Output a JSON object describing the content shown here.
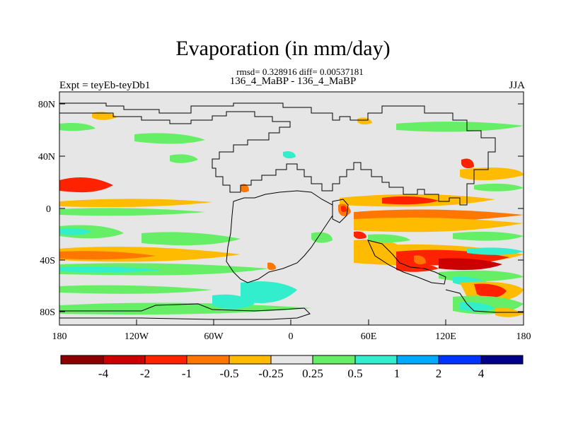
{
  "title": "Evaporation (in mm/day)",
  "stats_line": "rmsd= 0.328916 diff= 0.00537181",
  "period_line": "136_4_MaBP - 136_4_MaBP",
  "experiment_label": "Expt = teyEb-teyDb1",
  "season_label": "JJA",
  "axes": {
    "y_tick_labels": [
      "80N",
      "40N",
      "0",
      "40S",
      "80S"
    ],
    "x_tick_labels": [
      "180",
      "120W",
      "60W",
      "0",
      "60E",
      "120E",
      "180"
    ]
  },
  "colorbar": {
    "labels": [
      "-4",
      "-2",
      "-1",
      "-0.5",
      "-0.25",
      "0.25",
      "0.5",
      "1",
      "2",
      "4"
    ],
    "colors": [
      "#8b0000",
      "#cc0000",
      "#ff2200",
      "#ff7700",
      "#ffbb00",
      "#e6e6e6",
      "#66ee66",
      "#33eecc",
      "#00aaff",
      "#0033ff",
      "#000088"
    ]
  },
  "map_colors": {
    "background": "#e6e6e6",
    "coastline": "#000000"
  }
}
